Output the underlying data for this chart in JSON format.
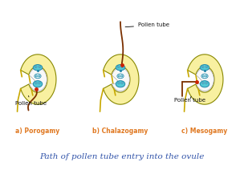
{
  "title": "Path of pollen tube entry into the ovule",
  "labels": [
    "a) Porogamy",
    "b) Chalazogamy",
    "c) Mesogamy"
  ],
  "pollen_tube_labels": [
    "Pollen tube",
    "Pollen tube",
    "Pollen tube"
  ],
  "bg_color": "#ffffff",
  "yellow_outer": "#f0d800",
  "yellow_inner": "#f8f0a0",
  "white_cavity": "#f8f8f8",
  "cyan_color": "#55c8d5",
  "brown_color": "#7B3000",
  "red_dot": "#cc2200",
  "label_color": "#e07820",
  "title_color": "#3355aa",
  "black": "#111111",
  "label_fontsize": 5.5,
  "title_fontsize": 7.5,
  "annot_fontsize": 5.0
}
